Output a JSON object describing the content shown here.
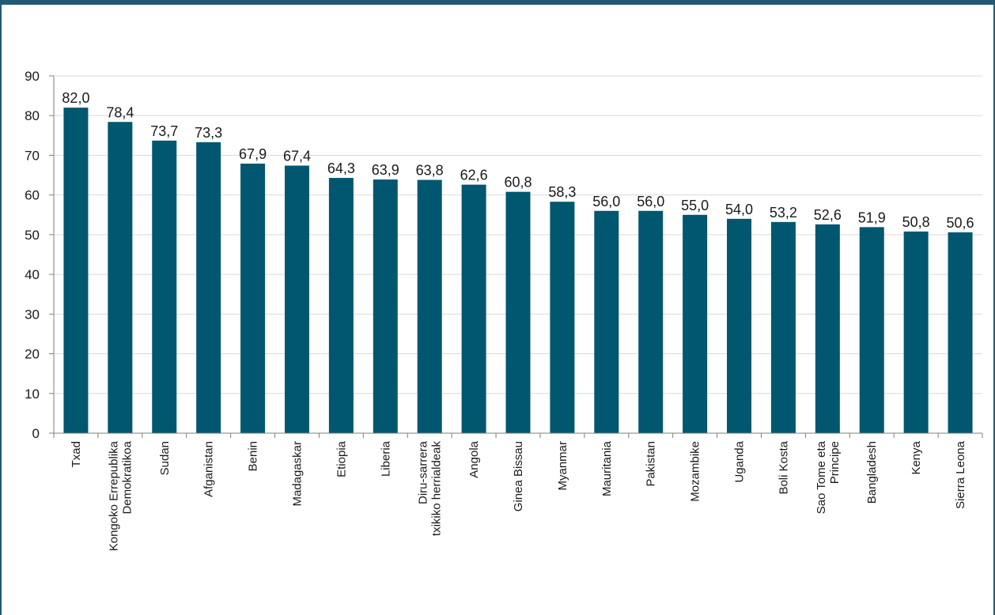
{
  "chart_data": {
    "type": "bar",
    "categories": [
      "Txad",
      "Kongoko Errepublika Demokratikoa",
      "Sudan",
      "Afganistan",
      "Benin",
      "Madagaskar",
      "Etiopia",
      "Liberia",
      "Diru-sarrera txikiko herrialdeak",
      "Angola",
      "Ginea Bissau",
      "Myanmar",
      "Mauritania",
      "Pakistan",
      "Mozambike",
      "Uganda",
      "Boli Kosta",
      "Sao Tome eta Principe",
      "Bangladesh",
      "Kenya",
      "Sierra Leona"
    ],
    "category_lines": [
      [
        "Txad"
      ],
      [
        "Kongoko Errepublika",
        "Demokratikoa"
      ],
      [
        "Sudan"
      ],
      [
        "Afganistan"
      ],
      [
        "Benin"
      ],
      [
        "Madagaskar"
      ],
      [
        "Etiopia"
      ],
      [
        "Liberia"
      ],
      [
        "Diru-sarrera",
        "txikiko herrialdeak"
      ],
      [
        "Angola"
      ],
      [
        "Ginea Bissau"
      ],
      [
        "Myanmar"
      ],
      [
        "Mauritania"
      ],
      [
        "Pakistan"
      ],
      [
        "Mozambike"
      ],
      [
        "Uganda"
      ],
      [
        "Boli Kosta"
      ],
      [
        "Sao Tome eta",
        "Principe"
      ],
      [
        "Bangladesh"
      ],
      [
        "Kenya"
      ],
      [
        "Sierra Leona"
      ]
    ],
    "values": [
      82.0,
      78.4,
      73.7,
      73.3,
      67.9,
      67.4,
      64.3,
      63.9,
      63.8,
      62.6,
      60.8,
      58.3,
      56.0,
      56.0,
      55.0,
      54.0,
      53.2,
      52.6,
      51.9,
      50.8,
      50.6
    ],
    "value_labels": [
      "82,0",
      "78,4",
      "73,7",
      "73,3",
      "67,9",
      "67,4",
      "64,3",
      "63,9",
      "63,8",
      "62,6",
      "60,8",
      "58,3",
      "56,0",
      "56,0",
      "55,0",
      "54,0",
      "53,2",
      "52,6",
      "51,9",
      "50,8",
      "50,6"
    ],
    "ylim": [
      0,
      90
    ],
    "yticks": [
      0,
      10,
      20,
      30,
      40,
      50,
      60,
      70,
      80,
      90
    ],
    "grid": true,
    "title": "",
    "xlabel": "",
    "ylabel": "",
    "bar_color": "#00576f",
    "grid_color": "#d9d9d9"
  }
}
